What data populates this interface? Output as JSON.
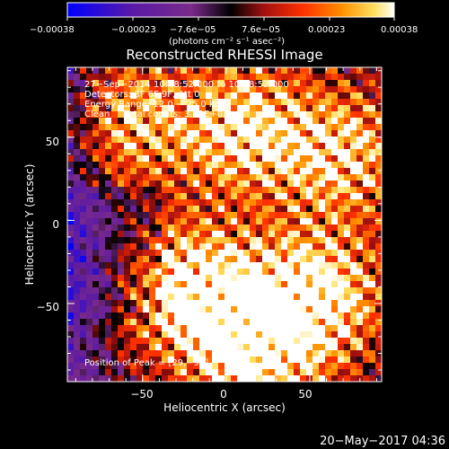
{
  "chart_data": {
    "type": "heatmap",
    "title": "Reconstructed RHESSI Image",
    "xlabel": "Heliocentric X (arcsec)",
    "ylabel": "Heliocentric Y (arcsec)",
    "xlim": [
      -95,
      93
    ],
    "ylim": [
      -97,
      92
    ],
    "xticks": [
      -50,
      0,
      50
    ],
    "yticks": [
      -50,
      0,
      50
    ],
    "xtick_labels": [
      "−50",
      "0",
      "50"
    ],
    "ytick_labels": [
      "−50",
      "0",
      "50"
    ],
    "colorbar": {
      "range": [
        -0.00038,
        0.00038
      ],
      "tick_labels": [
        "−0.00038",
        "−0.00023",
        "−7.6e−05",
        "7.6e−05",
        "0.00023",
        "0.00038"
      ],
      "unit_label": "(photons cm⁻² s⁻¹ asec⁻²)",
      "colors": [
        "#0000ff",
        "#5a1aa6",
        "#7a2a8a",
        "#000000",
        "#a01010",
        "#ff3000",
        "#ff9000",
        "#ffe060",
        "#ffffff"
      ]
    },
    "annotations": [
      "27−Sep−2014 10:48:52.000 to 10:58:52.000",
      "Detectors: 3F 6F 9F, Att 0",
      "Energy Range: 12.0 − 25.0 keV",
      "Clean     Total counts: 3.12E+03"
    ],
    "peak_label": "Position of Peak = [29,−91]",
    "bright_regions": [
      {
        "x": -60,
        "y": 60,
        "v": 0.7
      },
      {
        "x": 10,
        "y": 55,
        "v": 0.9
      },
      {
        "x": 70,
        "y": 40,
        "v": 0.8
      },
      {
        "x": 55,
        "y": -45,
        "v": 1.0
      },
      {
        "x": -25,
        "y": -40,
        "v": 0.9
      },
      {
        "x": 10,
        "y": -60,
        "v": 0.7
      },
      {
        "x": 20,
        "y": -91,
        "v": 0.6
      }
    ]
  },
  "footer_date": "20−May−2017 04:36"
}
